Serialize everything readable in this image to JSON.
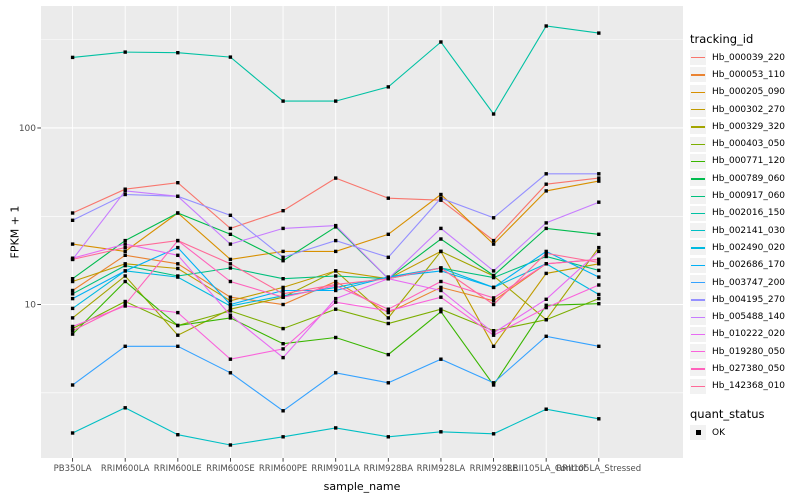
{
  "colors": {
    "panel_bg": "#EBEBEB",
    "grid": "#FFFFFF",
    "tick_text": "#4D4D4D",
    "tick_mark": "#333333",
    "axis_title": "#000000",
    "point": "#000000",
    "legend_key_bg": "#F2F2F2"
  },
  "legend": {
    "tracking_title": "tracking_id",
    "quant_title": "quant_status",
    "quant_items": [
      {
        "label": "OK",
        "symbol": "black-square"
      }
    ]
  },
  "chart_data": {
    "type": "line",
    "title": "",
    "xlabel": "sample_name",
    "ylabel": "FPKM + 1",
    "y_scale": "log10",
    "ylim": [
      1.35,
      491
    ],
    "y_major_ticks": [
      100,
      10
    ],
    "y_tick_labels": [
      "100",
      "10"
    ],
    "y_minor_gridlines": [
      316,
      31.6,
      3.16
    ],
    "grid": true,
    "legend_position": "right",
    "point_shape": "filled-black-square",
    "x_categories": [
      "PB350LA",
      "RRIM600LA",
      "RRIM600LE",
      "RRIM600SE",
      "RRIM600PE",
      "RRIM901LA",
      "RRIM928BA",
      "RRIM928LA",
      "RRIM928LE",
      "RRII105LA_Control",
      "RRII105LA_Stressed"
    ],
    "series": [
      {
        "name": "Hb_000039_220",
        "color": "#F8766D",
        "values": [
          33,
          45,
          49,
          27,
          34,
          52,
          40,
          39,
          23,
          48,
          52
        ]
      },
      {
        "name": "Hb_000053_110",
        "color": "#EA8331",
        "values": [
          12,
          19,
          17,
          11,
          10,
          13.5,
          9,
          12.5,
          10.5,
          17,
          18
        ]
      },
      {
        "name": "Hb_000205_090",
        "color": "#D89000",
        "values": [
          22,
          20,
          33,
          18,
          20,
          20,
          25,
          42,
          22,
          44,
          50
        ]
      },
      {
        "name": "Hb_000302_270",
        "color": "#C09B00",
        "values": [
          13.5,
          17,
          16,
          10.5,
          12.5,
          15.5,
          14,
          20,
          5.8,
          15,
          17
        ]
      },
      {
        "name": "Hb_000329_320",
        "color": "#A3A500",
        "values": [
          8.4,
          14.5,
          6.7,
          9.4,
          11,
          15.5,
          8.4,
          20,
          14.5,
          8.2,
          21
        ]
      },
      {
        "name": "Hb_000403_050",
        "color": "#7CAE00",
        "values": [
          7.3,
          10.4,
          7.6,
          9.2,
          7.3,
          9.4,
          7.8,
          9.4,
          7.1,
          8.2,
          10.8
        ]
      },
      {
        "name": "Hb_000771_120",
        "color": "#39B600",
        "values": [
          6.8,
          13.5,
          7.6,
          8.4,
          6,
          6.5,
          5.2,
          9.1,
          3.5,
          9.9,
          10.1
        ]
      },
      {
        "name": "Hb_000789_060",
        "color": "#00BB4E",
        "values": [
          14,
          23,
          33,
          25,
          17.7,
          27.5,
          14,
          23.5,
          14.6,
          27,
          25
        ]
      },
      {
        "name": "Hb_000917_060",
        "color": "#00BF7D",
        "values": [
          11.5,
          16.6,
          14.5,
          16.1,
          14,
          14.5,
          14,
          16.1,
          14.2,
          18.7,
          15.6
        ]
      },
      {
        "name": "Hb_002016_150",
        "color": "#00C1A3",
        "values": [
          251,
          269,
          267,
          252,
          142,
          142,
          171,
          307,
          120,
          378,
          345
        ]
      },
      {
        "name": "Hb_002141_030",
        "color": "#00BFC4",
        "values": [
          1.87,
          2.6,
          1.83,
          1.6,
          1.78,
          2.0,
          1.78,
          1.9,
          1.85,
          2.55,
          2.25
        ]
      },
      {
        "name": "Hb_002490_020",
        "color": "#00BAE0",
        "values": [
          9.5,
          15.5,
          14.3,
          9.8,
          11.2,
          12.5,
          14.3,
          16.1,
          12.5,
          17,
          11.4
        ]
      },
      {
        "name": "Hb_002686_170",
        "color": "#00B0F6",
        "values": [
          10.8,
          15.5,
          21,
          10,
          12,
          12,
          14.3,
          15.5,
          12.5,
          20,
          14.3
        ]
      },
      {
        "name": "Hb_003747_200",
        "color": "#35A2FF",
        "values": [
          3.5,
          5.8,
          5.8,
          4.1,
          2.5,
          4.1,
          3.6,
          4.9,
          3.6,
          6.6,
          5.8
        ]
      },
      {
        "name": "Hb_004195_270",
        "color": "#9590FF",
        "values": [
          30,
          42,
          41,
          32,
          18.5,
          23,
          18.5,
          40,
          31,
          55,
          55
        ]
      },
      {
        "name": "Hb_005488_140",
        "color": "#C77CFF",
        "values": [
          18,
          44,
          41,
          22,
          27,
          28,
          14,
          27,
          15.5,
          29,
          38
        ]
      },
      {
        "name": "Hb_010222_020",
        "color": "#E76BF3",
        "values": [
          18.3,
          22,
          19,
          8.7,
          5.0,
          10.8,
          14,
          12,
          6.9,
          10.7,
          20
        ]
      },
      {
        "name": "Hb_019280_050",
        "color": "#FA62DB",
        "values": [
          7.5,
          9.8,
          9,
          4.9,
          5.6,
          10.3,
          9.2,
          11,
          6.7,
          9.6,
          12.9
        ]
      },
      {
        "name": "Hb_027380_050",
        "color": "#FF62BC",
        "values": [
          7.1,
          10,
          23,
          13.5,
          11,
          12.8,
          9.4,
          13.5,
          10.9,
          17,
          18
        ]
      },
      {
        "name": "Hb_142368_010",
        "color": "#FF6A98",
        "values": [
          18,
          21,
          23,
          17,
          11.5,
          13,
          14,
          16.1,
          10,
          19.5,
          17.3
        ]
      }
    ]
  }
}
